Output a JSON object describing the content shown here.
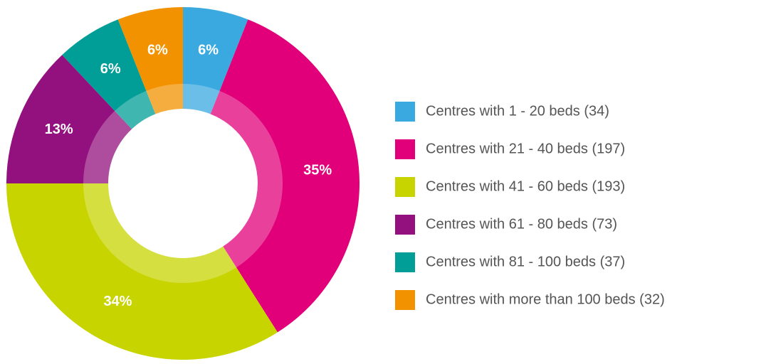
{
  "chart_data": {
    "type": "donut",
    "categories": [
      "Centres with 1 - 20 beds (34)",
      "Centres with 21 - 40 beds (197)",
      "Centres with 41 - 60 beds (193)",
      "Centres with 61 - 80 beds (73)",
      "Centres with 81 - 100 beds (37)",
      "Centres with more than 100 beds (32)"
    ],
    "values": [
      6,
      35,
      34,
      13,
      6,
      6
    ],
    "value_labels": [
      "6%",
      "35%",
      "34%",
      "13%",
      "6%",
      "6%"
    ],
    "colors": [
      "#3aa9e0",
      "#e2007a",
      "#c8d400",
      "#93117e",
      "#009e96",
      "#f39200"
    ],
    "legend": "right"
  }
}
